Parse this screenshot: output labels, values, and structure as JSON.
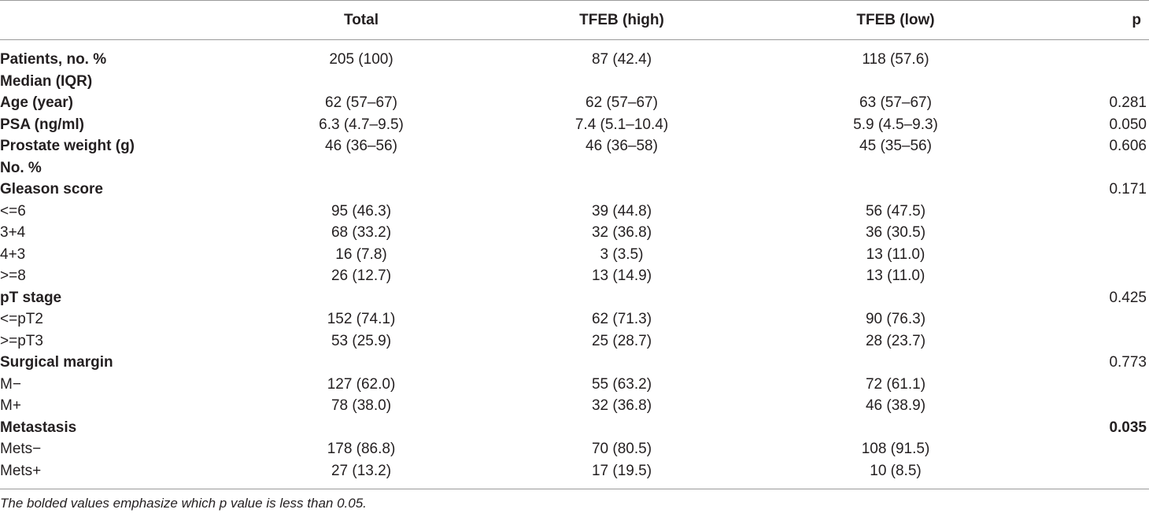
{
  "table": {
    "headers": [
      "",
      "Total",
      "TFEB (high)",
      "TFEB (low)",
      "p"
    ],
    "rows": [
      {
        "label": "Patients, no. %",
        "bold_label": true,
        "total": "205 (100)",
        "high": "87 (42.4)",
        "low": "118 (57.6)",
        "p": "",
        "p_bold": false
      },
      {
        "label": "Median (IQR)",
        "bold_label": true,
        "total": "",
        "high": "",
        "low": "",
        "p": "",
        "p_bold": false
      },
      {
        "label": "Age (year)",
        "bold_label": true,
        "total": "62 (57–67)",
        "high": "62 (57–67)",
        "low": "63 (57–67)",
        "p": "0.281",
        "p_bold": false
      },
      {
        "label": "PSA (ng/ml)",
        "bold_label": true,
        "total": "6.3 (4.7–9.5)",
        "high": "7.4 (5.1–10.4)",
        "low": "5.9 (4.5–9.3)",
        "p": "0.050",
        "p_bold": false
      },
      {
        "label": "Prostate weight (g)",
        "bold_label": true,
        "total": "46 (36–56)",
        "high": "46 (36–58)",
        "low": "45 (35–56)",
        "p": "0.606",
        "p_bold": false
      },
      {
        "label": "No. %",
        "bold_label": true,
        "total": "",
        "high": "",
        "low": "",
        "p": "",
        "p_bold": false
      },
      {
        "label": "Gleason score",
        "bold_label": true,
        "total": "",
        "high": "",
        "low": "",
        "p": "0.171",
        "p_bold": false
      },
      {
        "label": "<=6",
        "bold_label": false,
        "total": "95 (46.3)",
        "high": "39 (44.8)",
        "low": "56 (47.5)",
        "p": "",
        "p_bold": false
      },
      {
        "label": "3+4",
        "bold_label": false,
        "total": "68 (33.2)",
        "high": "32 (36.8)",
        "low": "36 (30.5)",
        "p": "",
        "p_bold": false
      },
      {
        "label": "4+3",
        "bold_label": false,
        "total": "16 (7.8)",
        "high": "3 (3.5)",
        "low": "13 (11.0)",
        "p": "",
        "p_bold": false
      },
      {
        "label": ">=8",
        "bold_label": false,
        "total": "26 (12.7)",
        "high": "13 (14.9)",
        "low": "13 (11.0)",
        "p": "",
        "p_bold": false
      },
      {
        "label": "pT stage",
        "bold_label": true,
        "total": "",
        "high": "",
        "low": "",
        "p": "0.425",
        "p_bold": false
      },
      {
        "label": "<=pT2",
        "bold_label": false,
        "total": "152 (74.1)",
        "high": "62 (71.3)",
        "low": "90 (76.3)",
        "p": "",
        "p_bold": false
      },
      {
        "label": ">=pT3",
        "bold_label": false,
        "total": "53 (25.9)",
        "high": "25 (28.7)",
        "low": "28 (23.7)",
        "p": "",
        "p_bold": false
      },
      {
        "label": "Surgical margin",
        "bold_label": true,
        "total": "",
        "high": "",
        "low": "",
        "p": "0.773",
        "p_bold": false
      },
      {
        "label": "M−",
        "bold_label": false,
        "total": "127 (62.0)",
        "high": "55 (63.2)",
        "low": "72 (61.1)",
        "p": "",
        "p_bold": false
      },
      {
        "label": "M+",
        "bold_label": false,
        "total": "78 (38.0)",
        "high": "32 (36.8)",
        "low": "46 (38.9)",
        "p": "",
        "p_bold": false
      },
      {
        "label": "Metastasis",
        "bold_label": true,
        "total": "",
        "high": "",
        "low": "",
        "p": "0.035",
        "p_bold": true
      },
      {
        "label": "Mets−",
        "bold_label": false,
        "total": "178 (86.8)",
        "high": "70 (80.5)",
        "low": "108 (91.5)",
        "p": "",
        "p_bold": false
      },
      {
        "label": "Mets+",
        "bold_label": false,
        "total": "27 (13.2)",
        "high": "17 (19.5)",
        "low": "10 (8.5)",
        "p": "",
        "p_bold": false
      }
    ]
  },
  "footnote": "The bolded values emphasize which p value is less than 0.05."
}
